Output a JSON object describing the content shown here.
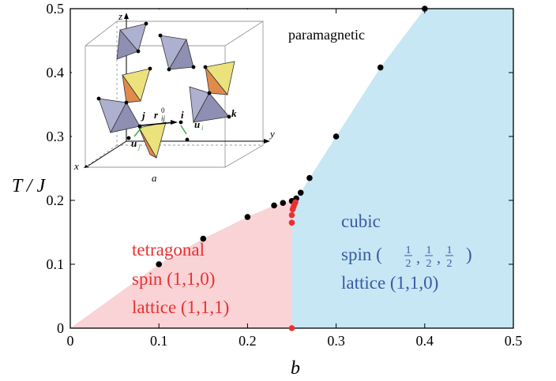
{
  "chart_data": {
    "type": "scatter",
    "xlabel": "b",
    "ylabel": "T / J",
    "xlim": [
      0,
      0.5
    ],
    "ylim": [
      0,
      0.5
    ],
    "x_ticks": [
      "0",
      "0.1",
      "0.2",
      "0.3",
      "0.4",
      "0.5"
    ],
    "y_ticks": [
      "0",
      "0.1",
      "0.2",
      "0.3",
      "0.4",
      "0.5"
    ],
    "regions": {
      "paramagnetic": {
        "label": "paramagnetic"
      },
      "tetragonal": {
        "lines": [
          "tetragonal",
          "spin (1,1,0)",
          "lattice (1,1,1)"
        ],
        "color": "#f9d3d6",
        "text_color": "#ea3030"
      },
      "cubic": {
        "lines": [
          "cubic",
          "spin (",
          ")",
          "lattice (1,1,0)"
        ],
        "fraction": "1/2",
        "color": "#c7e7f4",
        "text_color": "#3b5aa6"
      }
    },
    "series": [
      {
        "color": "#000000",
        "points": [
          [
            0.1,
            0.1
          ],
          [
            0.15,
            0.14
          ],
          [
            0.2,
            0.174
          ],
          [
            0.23,
            0.192
          ],
          [
            0.24,
            0.196
          ],
          [
            0.25,
            0.199
          ],
          [
            0.255,
            0.203
          ],
          [
            0.26,
            0.212
          ],
          [
            0.27,
            0.235
          ],
          [
            0.3,
            0.3
          ],
          [
            0.35,
            0.408
          ],
          [
            0.4,
            0.5
          ]
        ]
      },
      {
        "color": "#ea3030",
        "points": [
          [
            0.25,
            0.0
          ],
          [
            0.25,
            0.165
          ],
          [
            0.25,
            0.177
          ],
          [
            0.251,
            0.186
          ],
          [
            0.252,
            0.19
          ],
          [
            0.253,
            0.194
          ],
          [
            0.254,
            0.197
          ]
        ]
      }
    ],
    "inset": {
      "labels": [
        "z",
        "y",
        "x",
        "a",
        "j",
        "i",
        "k",
        "r",
        "ij",
        "0",
        "u",
        "j",
        "u",
        "i"
      ]
    }
  }
}
